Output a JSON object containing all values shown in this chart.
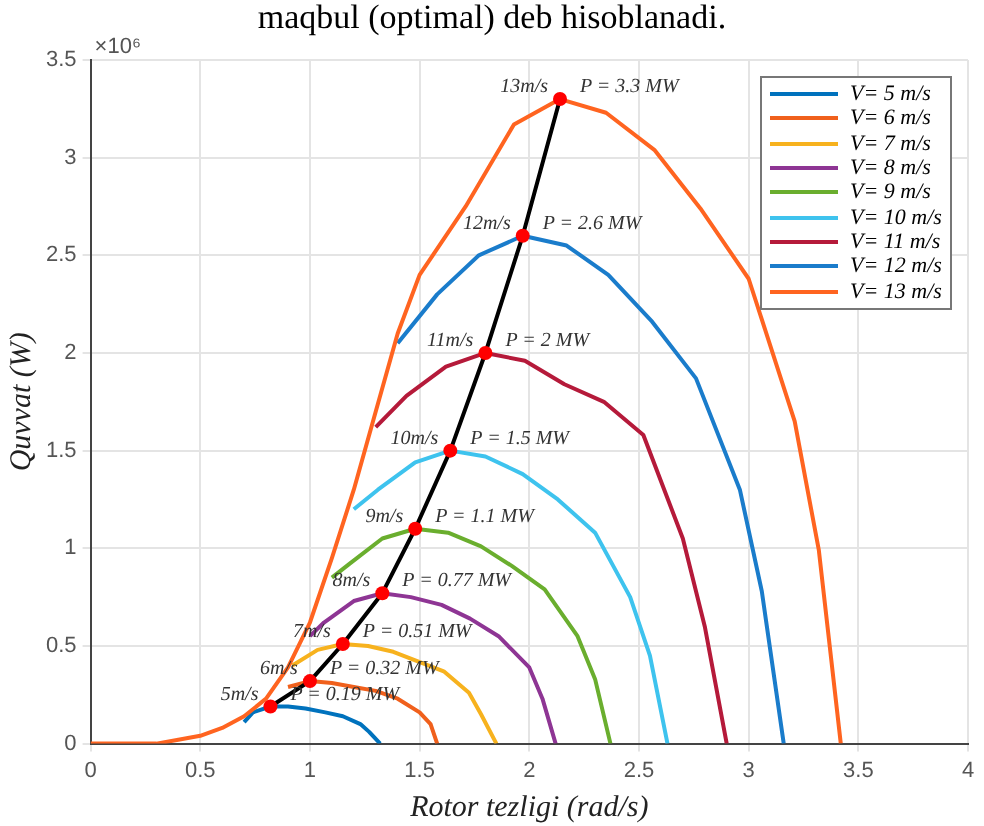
{
  "chart_data": {
    "type": "line",
    "title": "maqbul (optimal) deb hisoblanadi.",
    "xlabel": "Rotor tezligi (rad/s)",
    "ylabel": "Quvvat (W)",
    "xlim": [
      0,
      4
    ],
    "xticks": [
      0,
      0.5,
      1,
      1.5,
      2,
      2.5,
      3,
      3.5,
      4
    ],
    "ylim": [
      0,
      3.5
    ],
    "yticks": [
      0,
      0.5,
      1,
      1.5,
      2,
      2.5,
      3,
      3.5
    ],
    "grid": true,
    "legend": "top right",
    "marker": "none",
    "series": [
      {
        "name": "V= 5 m/s",
        "color": "#0072bd",
        "x": [
          0.7,
          0.74,
          0.82,
          0.9,
          0.98,
          1.07,
          1.15,
          1.23,
          1.27,
          1.32
        ],
        "values": [
          0.11,
          0.16,
          0.19,
          0.19,
          0.18,
          0.16,
          0.14,
          0.1,
          0.06,
          0
        ]
      },
      {
        "name": "V= 6 m/s",
        "color": "#f0601c",
        "x": [
          0.9,
          1.0,
          1.1,
          1.2,
          1.3,
          1.4,
          1.5,
          1.55,
          1.58
        ],
        "values": [
          0.29,
          0.32,
          0.31,
          0.29,
          0.27,
          0.23,
          0.16,
          0.1,
          0
        ]
      },
      {
        "name": "V= 7 m/s",
        "color": "#f7b21e",
        "x": [
          0.92,
          1.035,
          1.15,
          1.265,
          1.38,
          1.495,
          1.61,
          1.725,
          1.78,
          1.85
        ],
        "values": [
          0.4,
          0.48,
          0.51,
          0.5,
          0.47,
          0.42,
          0.37,
          0.26,
          0.15,
          0
        ]
      },
      {
        "name": "V= 8 m/s",
        "color": "#8e3594",
        "x": [
          1.0,
          1.064,
          1.2,
          1.33,
          1.46,
          1.6,
          1.73,
          1.86,
          2.0,
          2.06,
          2.12
        ],
        "values": [
          0.55,
          0.62,
          0.73,
          0.77,
          0.75,
          0.71,
          0.64,
          0.55,
          0.39,
          0.23,
          0
        ]
      },
      {
        "name": "V= 9 m/s",
        "color": "#6aae2e",
        "x": [
          1.1,
          1.18,
          1.33,
          1.48,
          1.63,
          1.78,
          1.92,
          2.07,
          2.22,
          2.3,
          2.37
        ],
        "values": [
          0.85,
          0.92,
          1.05,
          1.1,
          1.08,
          1.01,
          0.91,
          0.79,
          0.55,
          0.33,
          0
        ]
      },
      {
        "name": "V= 10 m/s",
        "color": "#3ec3ee",
        "x": [
          1.2,
          1.31,
          1.48,
          1.64,
          1.8,
          1.97,
          2.13,
          2.3,
          2.46,
          2.55,
          2.63
        ],
        "values": [
          1.2,
          1.3,
          1.44,
          1.5,
          1.47,
          1.38,
          1.25,
          1.08,
          0.75,
          0.45,
          0
        ]
      },
      {
        "name": "V= 11 m/s",
        "color": "#b51a3a",
        "x": [
          1.3,
          1.44,
          1.62,
          1.8,
          1.98,
          2.16,
          2.34,
          2.52,
          2.7,
          2.8,
          2.9
        ],
        "values": [
          1.62,
          1.78,
          1.93,
          2,
          1.96,
          1.84,
          1.75,
          1.58,
          1.05,
          0.6,
          0
        ]
      },
      {
        "name": "V= 12 m/s",
        "color": "#1a7ccb",
        "x": [
          1.4,
          1.58,
          1.77,
          1.97,
          2.17,
          2.36,
          2.56,
          2.76,
          2.96,
          3.06,
          3.16
        ],
        "values": [
          2.05,
          2.3,
          2.5,
          2.6,
          2.55,
          2.4,
          2.16,
          1.87,
          1.3,
          0.78,
          0
        ]
      },
      {
        "name": "V= 13 m/s",
        "color": "#ff6420",
        "x": [
          0,
          0.2,
          0.3,
          0.4,
          0.5,
          0.6,
          0.7,
          0.8,
          0.9,
          1.0,
          1.1,
          1.2,
          1.3,
          1.4,
          1.5,
          1.71,
          1.93,
          2.14,
          2.35,
          2.57,
          2.78,
          3.0,
          3.21,
          3.32,
          3.42
        ],
        "values": [
          0,
          0,
          0,
          0.02,
          0.04,
          0.08,
          0.14,
          0.23,
          0.39,
          0.62,
          0.95,
          1.3,
          1.7,
          2.1,
          2.4,
          2.75,
          3.17,
          3.3,
          3.23,
          3.04,
          2.74,
          2.38,
          1.65,
          0.99,
          0
        ]
      },
      {
        "color": "#000000",
        "x": [
          0.82,
          1.0,
          1.15,
          1.33,
          1.48,
          1.64,
          1.8,
          1.97,
          2.14
        ],
        "values": [
          0.19,
          0.32,
          0.51,
          0.77,
          1.1,
          1.5,
          2,
          2.6,
          3.3
        ]
      },
      {
        "type": "scatter",
        "marker": "circle",
        "color": "#ff0000",
        "x": [
          0.82,
          1.0,
          1.15,
          1.33,
          1.48,
          1.64,
          1.8,
          1.97,
          2.14
        ],
        "values": [
          0.19,
          0.32,
          0.51,
          0.77,
          1.1,
          1.5,
          2,
          2.6,
          3.3
        ]
      }
    ],
    "annotations": [
      "×10⁶",
      {
        "text": "13m/s",
        "x": 2.14,
        "y": 3.3
      },
      {
        "text": "P = 3.3 MW",
        "x": 2.14,
        "y": 3.3
      },
      {
        "text": "12m/s",
        "x": 1.97,
        "y": 2.6
      },
      {
        "text": "P = 2.6 MW",
        "x": 1.97,
        "y": 2.6
      },
      {
        "text": "11m/s",
        "x": 1.8,
        "y": 2
      },
      {
        "text": "P = 2 MW",
        "x": 1.8,
        "y": 2
      },
      {
        "text": "10m/s",
        "x": 1.64,
        "y": 1.5
      },
      {
        "text": "P = 1.5 MW",
        "x": 1.64,
        "y": 1.5
      },
      {
        "text": "9m/s",
        "x": 1.48,
        "y": 1.1
      },
      {
        "text": "P = 1.1 MW",
        "x": 1.48,
        "y": 1.1
      },
      {
        "text": "8m/s",
        "x": 1.33,
        "y": 0.77
      },
      {
        "text": "P = 0.77 MW",
        "x": 1.33,
        "y": 0.77
      },
      {
        "text": "7m/s",
        "x": 1.15,
        "y": 0.51
      },
      {
        "text": "P = 0.51 MW",
        "x": 1.15,
        "y": 0.51
      },
      {
        "text": "6m/s",
        "x": 1.0,
        "y": 0.32
      },
      {
        "text": "P = 0.32 MW",
        "x": 1.0,
        "y": 0.32
      },
      {
        "text": "5m/s",
        "x": 0.82,
        "y": 0.19
      },
      {
        "text": "P = 0.19 MW",
        "x": 0.82,
        "y": 0.19
      }
    ]
  }
}
